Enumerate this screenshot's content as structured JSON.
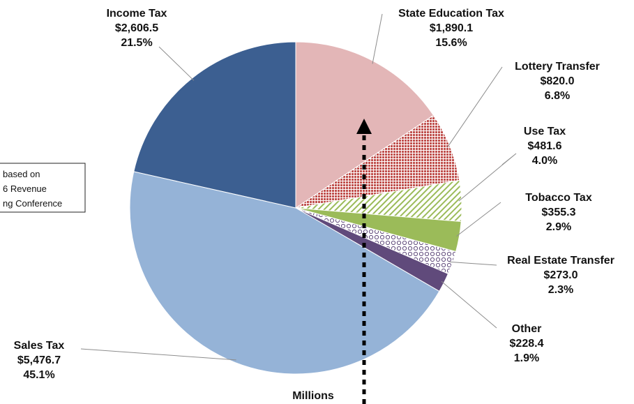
{
  "chart_data": {
    "type": "pie",
    "unit_label": "Millions",
    "note_lines": [
      "based on",
      "6 Revenue",
      "ng Conference"
    ],
    "slices": [
      {
        "name": "State Education Tax",
        "value_label": "$1,890.1",
        "pct_label": "15.6%",
        "value": 1890.1,
        "pct": 15.6,
        "color": "#e3b6b7",
        "pattern": "none"
      },
      {
        "name": "Lottery Transfer",
        "value_label": "$820.0",
        "pct_label": "6.8%",
        "value": 820.0,
        "pct": 6.8,
        "color": "#c0504d",
        "pattern": "dots"
      },
      {
        "name": "Use Tax",
        "value_label": "$481.6",
        "pct_label": "4.0%",
        "value": 481.6,
        "pct": 4.0,
        "color": "#9bbb59",
        "pattern": "diagonal"
      },
      {
        "name": "Tobacco Tax",
        "value_label": "$355.3",
        "pct_label": "2.9%",
        "value": 355.3,
        "pct": 2.9,
        "color": "#9bbb59",
        "pattern": "none"
      },
      {
        "name": "Real Estate Transfer",
        "value_label": "$273.0",
        "pct_label": "2.3%",
        "value": 273.0,
        "pct": 2.3,
        "color": "#604a7b",
        "pattern": "circles"
      },
      {
        "name": "Other",
        "value_label": "$228.4",
        "pct_label": "1.9%",
        "value": 228.4,
        "pct": 1.9,
        "color": "#604a7b",
        "pattern": "none"
      },
      {
        "name": "Sales Tax",
        "value_label": "$5,476.7",
        "pct_label": "45.1%",
        "value": 5476.7,
        "pct": 45.1,
        "color": "#95b3d7",
        "pattern": "none"
      },
      {
        "name": "Income Tax",
        "value_label": "$2,606.5",
        "pct_label": "21.5%",
        "value": 2606.5,
        "pct": 21.5,
        "color": "#3c5f91",
        "pattern": "none"
      }
    ]
  }
}
